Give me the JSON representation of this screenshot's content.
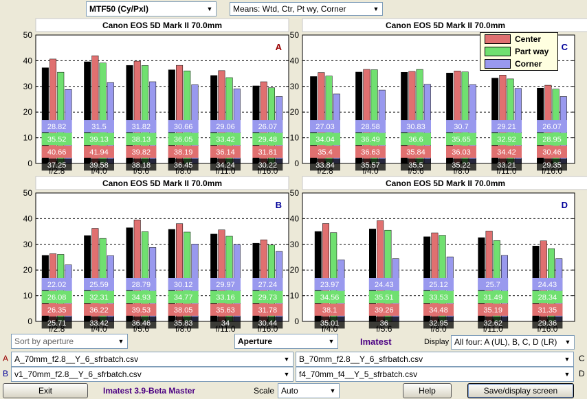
{
  "top": {
    "metric_select": "MTF50 (Cy/Pxl)",
    "means_select": "Means: Wtd, Ctr, Pt wy, Corner"
  },
  "legend": [
    {
      "name": "Center",
      "color": "#e07070"
    },
    {
      "name": "Part way",
      "color": "#70e070"
    },
    {
      "name": "Corner",
      "color": "#9999ee"
    }
  ],
  "chart_data": [
    {
      "type": "bar",
      "panel": "A",
      "title": "Canon EOS 5D Mark II    70.0mm",
      "ylim": [
        0,
        50
      ],
      "yticks": [
        0,
        10,
        20,
        30,
        40,
        50
      ],
      "grid": true,
      "categories": [
        "f/2.8",
        "f/4.0",
        "f/5.6",
        "f/8.0",
        "f/11.0",
        "f/16.0"
      ],
      "series": [
        {
          "values": [
            37.25,
            39.58,
            38.18,
            36.45,
            34.24,
            30.22
          ],
          "labels": [
            "37.25",
            "39.58",
            "38.18",
            "36.45",
            "34.24",
            "30.22"
          ]
        },
        {
          "name": "Center",
          "values": [
            40.66,
            41.94,
            39.82,
            38.19,
            36.14,
            31.81
          ],
          "labels": [
            "40.66",
            "41.94",
            "39.82",
            "38.19",
            "36.14",
            "31.81"
          ]
        },
        {
          "name": "Part way",
          "values": [
            35.52,
            39.13,
            38.13,
            36.05,
            33.42,
            29.48
          ],
          "labels": [
            "35.52",
            "39.13",
            "38.13",
            "36.05",
            "33.42",
            "29.48"
          ]
        },
        {
          "name": "Corner",
          "values": [
            28.82,
            31.5,
            31.82,
            30.66,
            29.06,
            26.07
          ],
          "labels": [
            "28.82",
            "31.5",
            "31.82",
            "30.66",
            "29.06",
            "26.07"
          ]
        }
      ]
    },
    {
      "type": "bar",
      "panel": "C",
      "title": "Canon EOS 5D Mark II    70.0mm",
      "ylim": [
        0,
        50
      ],
      "yticks": [
        0,
        10,
        20,
        30,
        40,
        50
      ],
      "grid": true,
      "legend_position": "top-right",
      "categories": [
        "f/2.8",
        "f/4.0",
        "f/5.6",
        "f/8.0",
        "f/11.0",
        "f/16.0"
      ],
      "series": [
        {
          "values": [
            33.84,
            35.57,
            35.5,
            35.22,
            33.21,
            29.35
          ],
          "labels": [
            "33.84",
            "35.57",
            "35.5",
            "35.22",
            "33.21",
            "29.35"
          ]
        },
        {
          "name": "Center",
          "values": [
            35.4,
            36.63,
            35.84,
            36.03,
            34.42,
            30.46
          ],
          "labels": [
            "35.4",
            "36.63",
            "35.84",
            "36.03",
            "34.42",
            "30.46"
          ]
        },
        {
          "name": "Part way",
          "values": [
            34.04,
            36.49,
            36.6,
            35.65,
            32.92,
            28.95
          ],
          "labels": [
            "34.04",
            "36.49",
            "36.6",
            "35.65",
            "32.92",
            "28.95"
          ]
        },
        {
          "name": "Corner",
          "values": [
            27.03,
            28.58,
            30.83,
            30.7,
            29.21,
            26.07
          ],
          "labels": [
            "27.03",
            "28.58",
            "30.83",
            "30.7",
            "29.21",
            "26.07"
          ]
        }
      ]
    },
    {
      "type": "bar",
      "panel": "B",
      "title": "Canon EOS 5D Mark II    70.0mm",
      "ylim": [
        0,
        50
      ],
      "yticks": [
        0,
        10,
        20,
        30,
        40,
        50
      ],
      "grid": true,
      "categories": [
        "f/2.8",
        "f/4.0",
        "f/5.6",
        "f/8.0",
        "f/11.0",
        "f/16.0"
      ],
      "series": [
        {
          "values": [
            25.71,
            33.42,
            36.46,
            35.83,
            34,
            30.44
          ],
          "labels": [
            "25.71",
            "33.42",
            "36.46",
            "35.83",
            "34",
            "30.44"
          ]
        },
        {
          "name": "Center",
          "values": [
            26.35,
            36.22,
            39.53,
            38.05,
            35.63,
            31.78
          ],
          "labels": [
            "26.35",
            "36.22",
            "39.53",
            "38.05",
            "35.63",
            "31.78"
          ]
        },
        {
          "name": "Part way",
          "values": [
            26.08,
            32.31,
            34.93,
            34.77,
            33.16,
            29.73
          ],
          "labels": [
            "26.08",
            "32.31",
            "34.93",
            "34.77",
            "33.16",
            "29.73"
          ]
        },
        {
          "name": "Corner",
          "values": [
            22.02,
            25.59,
            28.79,
            30.12,
            29.97,
            27.24
          ],
          "labels": [
            "22.02",
            "25.59",
            "28.79",
            "30.12",
            "29.97",
            "27.24"
          ]
        }
      ]
    },
    {
      "type": "bar",
      "panel": "D",
      "title": "Canon EOS 5D Mark II    70.0mm",
      "ylim": [
        0,
        50
      ],
      "yticks": [
        0,
        10,
        20,
        30,
        40,
        50
      ],
      "grid": true,
      "categories": [
        "f/4.0",
        "f/5.6",
        "f/8.0",
        "f/11.0",
        "f/16.0"
      ],
      "series": [
        {
          "values": [
            35.01,
            36,
            32.95,
            32.62,
            29.36
          ],
          "labels": [
            "35.01",
            "36",
            "32.95",
            "32.62",
            "29.36"
          ]
        },
        {
          "name": "Center",
          "values": [
            38.1,
            39.26,
            34.48,
            35.19,
            31.35
          ],
          "labels": [
            "38.1",
            "39.26",
            "34.48",
            "35.19",
            "31.35"
          ]
        },
        {
          "name": "Part way",
          "values": [
            34.56,
            35.51,
            33.53,
            31.49,
            28.34
          ],
          "labels": [
            "34.56",
            "35.51",
            "33.53",
            "31.49",
            "28.34"
          ]
        },
        {
          "name": "Corner",
          "values": [
            23.97,
            24.43,
            25.12,
            25.7,
            24.43
          ],
          "labels": [
            "23.97",
            "24.43",
            "25.12",
            "25.7",
            "24.43"
          ]
        }
      ]
    }
  ],
  "bottom": {
    "sort_select": "Sort by aperture",
    "axis_select": "Aperture",
    "brand": "Imatest",
    "display_label": "Display",
    "display_select": "All four: A (UL), B, C, D (LR)",
    "file_a_letter": "A",
    "file_a": "A_70mm_f2.8__Y_6_sfrbatch.csv",
    "file_b_letter": "B",
    "file_b": "v1_70mm_f2.8__Y_6_sfrbatch.csv",
    "file_c_letter": "C",
    "file_c": "B_70mm_f2.8__Y_6_sfrbatch.csv",
    "file_d_letter": "D",
    "file_d": "f4_70mm_f4__Y_5_sfrbatch.csv",
    "exit_button": "Exit",
    "version": "Imatest 3.9-Beta Master",
    "scale_label": "Scale",
    "scale_select": "Auto",
    "help_button": "Help",
    "save_button": "Save/display screen"
  },
  "colors": {
    "overall": "#000000",
    "center": "#e07070",
    "part_way": "#70e070",
    "corner": "#9999ee",
    "letter_red": "#990000",
    "letter_blue": "#000099",
    "brand": "#4b0082"
  }
}
